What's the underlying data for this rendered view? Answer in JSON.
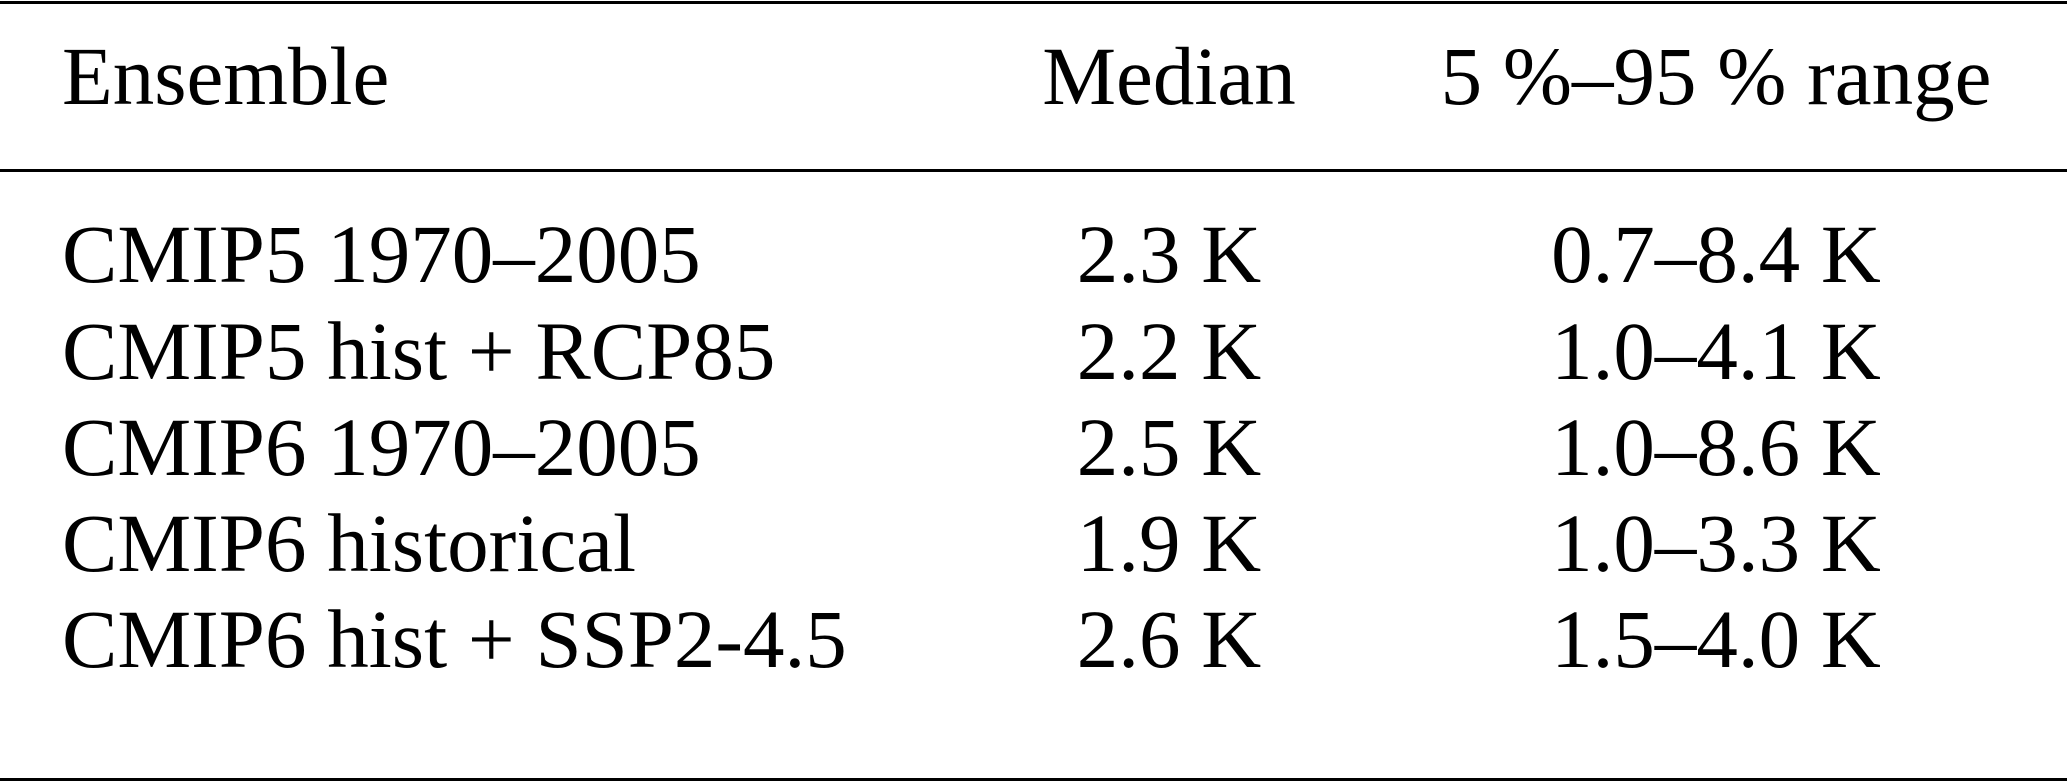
{
  "table": {
    "headers": [
      "Ensemble",
      "Median",
      "5 %–95 % range"
    ],
    "rows": [
      [
        "CMIP5 1970–2005",
        "2.3 K",
        "0.7–8.4 K"
      ],
      [
        "CMIP5 hist + RCP85",
        "2.2 K",
        "1.0–4.1 K"
      ],
      [
        "CMIP6 1970–2005",
        "2.5 K",
        "1.0–8.6 K"
      ],
      [
        "CMIP6 historical",
        "1.9 K",
        "1.0–3.3 K"
      ],
      [
        "CMIP6 hist + SSP2-4.5",
        "2.6 K",
        "1.5–4.0 K"
      ]
    ]
  }
}
